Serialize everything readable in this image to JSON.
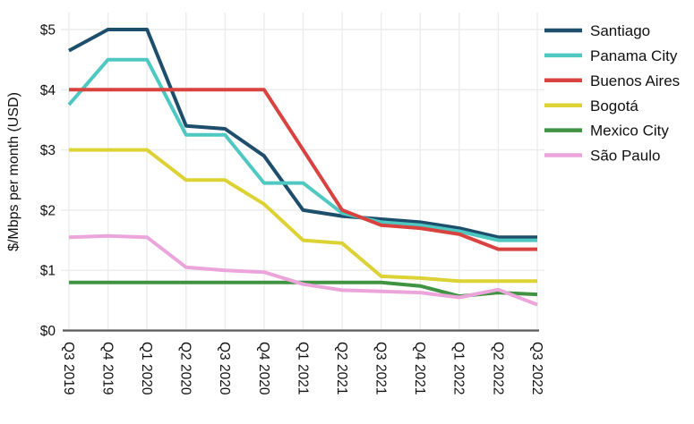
{
  "figure": {
    "background": "#ffffff",
    "grid_color": "#ececec",
    "axis_line_color": "#595959",
    "text_color": "#111111"
  },
  "chart_data": {
    "type": "line",
    "title": "",
    "xlabel": "",
    "ylabel": "$/Mbps per month (USD)",
    "categories": [
      "Q3 2019",
      "Q4 2019",
      "Q1 2020",
      "Q2 2020",
      "Q3 2020",
      "Q4 2020",
      "Q1 2021",
      "Q2 2021",
      "Q3 2021",
      "Q4 2021",
      "Q1 2022",
      "Q2 2022",
      "Q3 2022"
    ],
    "x_tick_rotation_deg": 90,
    "y_ticks": [
      0,
      1,
      2,
      3,
      4,
      5
    ],
    "y_tick_labels": [
      "$0",
      "$1",
      "$2",
      "$3",
      "$4",
      "$5"
    ],
    "ylim": [
      0,
      5.28
    ],
    "grid": true,
    "legend_position": "right",
    "series": [
      {
        "name": "Santiago",
        "color": "#1d4e6b",
        "values": [
          4.65,
          5.0,
          5.0,
          3.4,
          3.35,
          2.9,
          2.0,
          1.9,
          1.85,
          1.8,
          1.7,
          1.55,
          1.55
        ]
      },
      {
        "name": "Panama City",
        "color": "#4ec8c0",
        "values": [
          3.75,
          4.5,
          4.5,
          3.25,
          3.25,
          2.45,
          2.45,
          1.95,
          1.8,
          1.75,
          1.65,
          1.5,
          1.5
        ]
      },
      {
        "name": "Buenos Aires",
        "color": "#d8433f",
        "values": [
          4.0,
          4.0,
          4.0,
          4.0,
          4.0,
          4.0,
          3.0,
          2.0,
          1.75,
          1.7,
          1.6,
          1.35,
          1.35
        ]
      },
      {
        "name": "Bogotá",
        "color": "#ddd234",
        "values": [
          3.0,
          3.0,
          3.0,
          2.5,
          2.5,
          2.1,
          1.5,
          1.45,
          0.9,
          0.87,
          0.82,
          0.82,
          0.82
        ]
      },
      {
        "name": "Mexico City",
        "color": "#3f9342",
        "values": [
          0.8,
          0.8,
          0.8,
          0.8,
          0.8,
          0.8,
          0.8,
          0.8,
          0.8,
          0.74,
          0.57,
          0.63,
          0.6
        ]
      },
      {
        "name": "São Paulo",
        "color": "#eca5db",
        "values": [
          1.55,
          1.57,
          1.55,
          1.05,
          1.0,
          0.97,
          0.77,
          0.67,
          0.65,
          0.63,
          0.55,
          0.68,
          0.43
        ]
      }
    ]
  }
}
